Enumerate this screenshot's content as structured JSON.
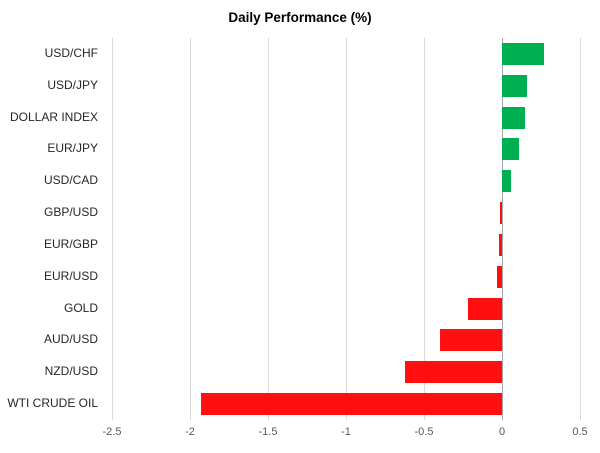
{
  "chart_data": {
    "type": "bar",
    "orientation": "horizontal",
    "title": "Daily Performance (%)",
    "categories": [
      "USD/CHF",
      "USD/JPY",
      "DOLLAR INDEX",
      "EUR/JPY",
      "USD/CAD",
      "GBP/USD",
      "EUR/GBP",
      "EUR/USD",
      "GOLD",
      "AUD/USD",
      "NZD/USD",
      "WTI CRUDE OIL"
    ],
    "values": [
      0.27,
      0.16,
      0.15,
      0.11,
      0.06,
      -0.01,
      -0.02,
      -0.03,
      -0.22,
      -0.4,
      -0.62,
      -1.93
    ],
    "xlim": [
      -2.5,
      0.5
    ],
    "xticks": [
      -2.5,
      -2,
      -1.5,
      -1,
      -0.5,
      0,
      0.5
    ],
    "xtick_labels": [
      "-2.5",
      "-2",
      "-1.5",
      "-1",
      "-0.5",
      "0",
      "0.5"
    ],
    "grid": true,
    "legend": false,
    "colors": {
      "positive": "#00b050",
      "negative": "#ff0f0f",
      "gridline": "#d9d9d9",
      "zero_line": "#a6a6a6"
    }
  }
}
